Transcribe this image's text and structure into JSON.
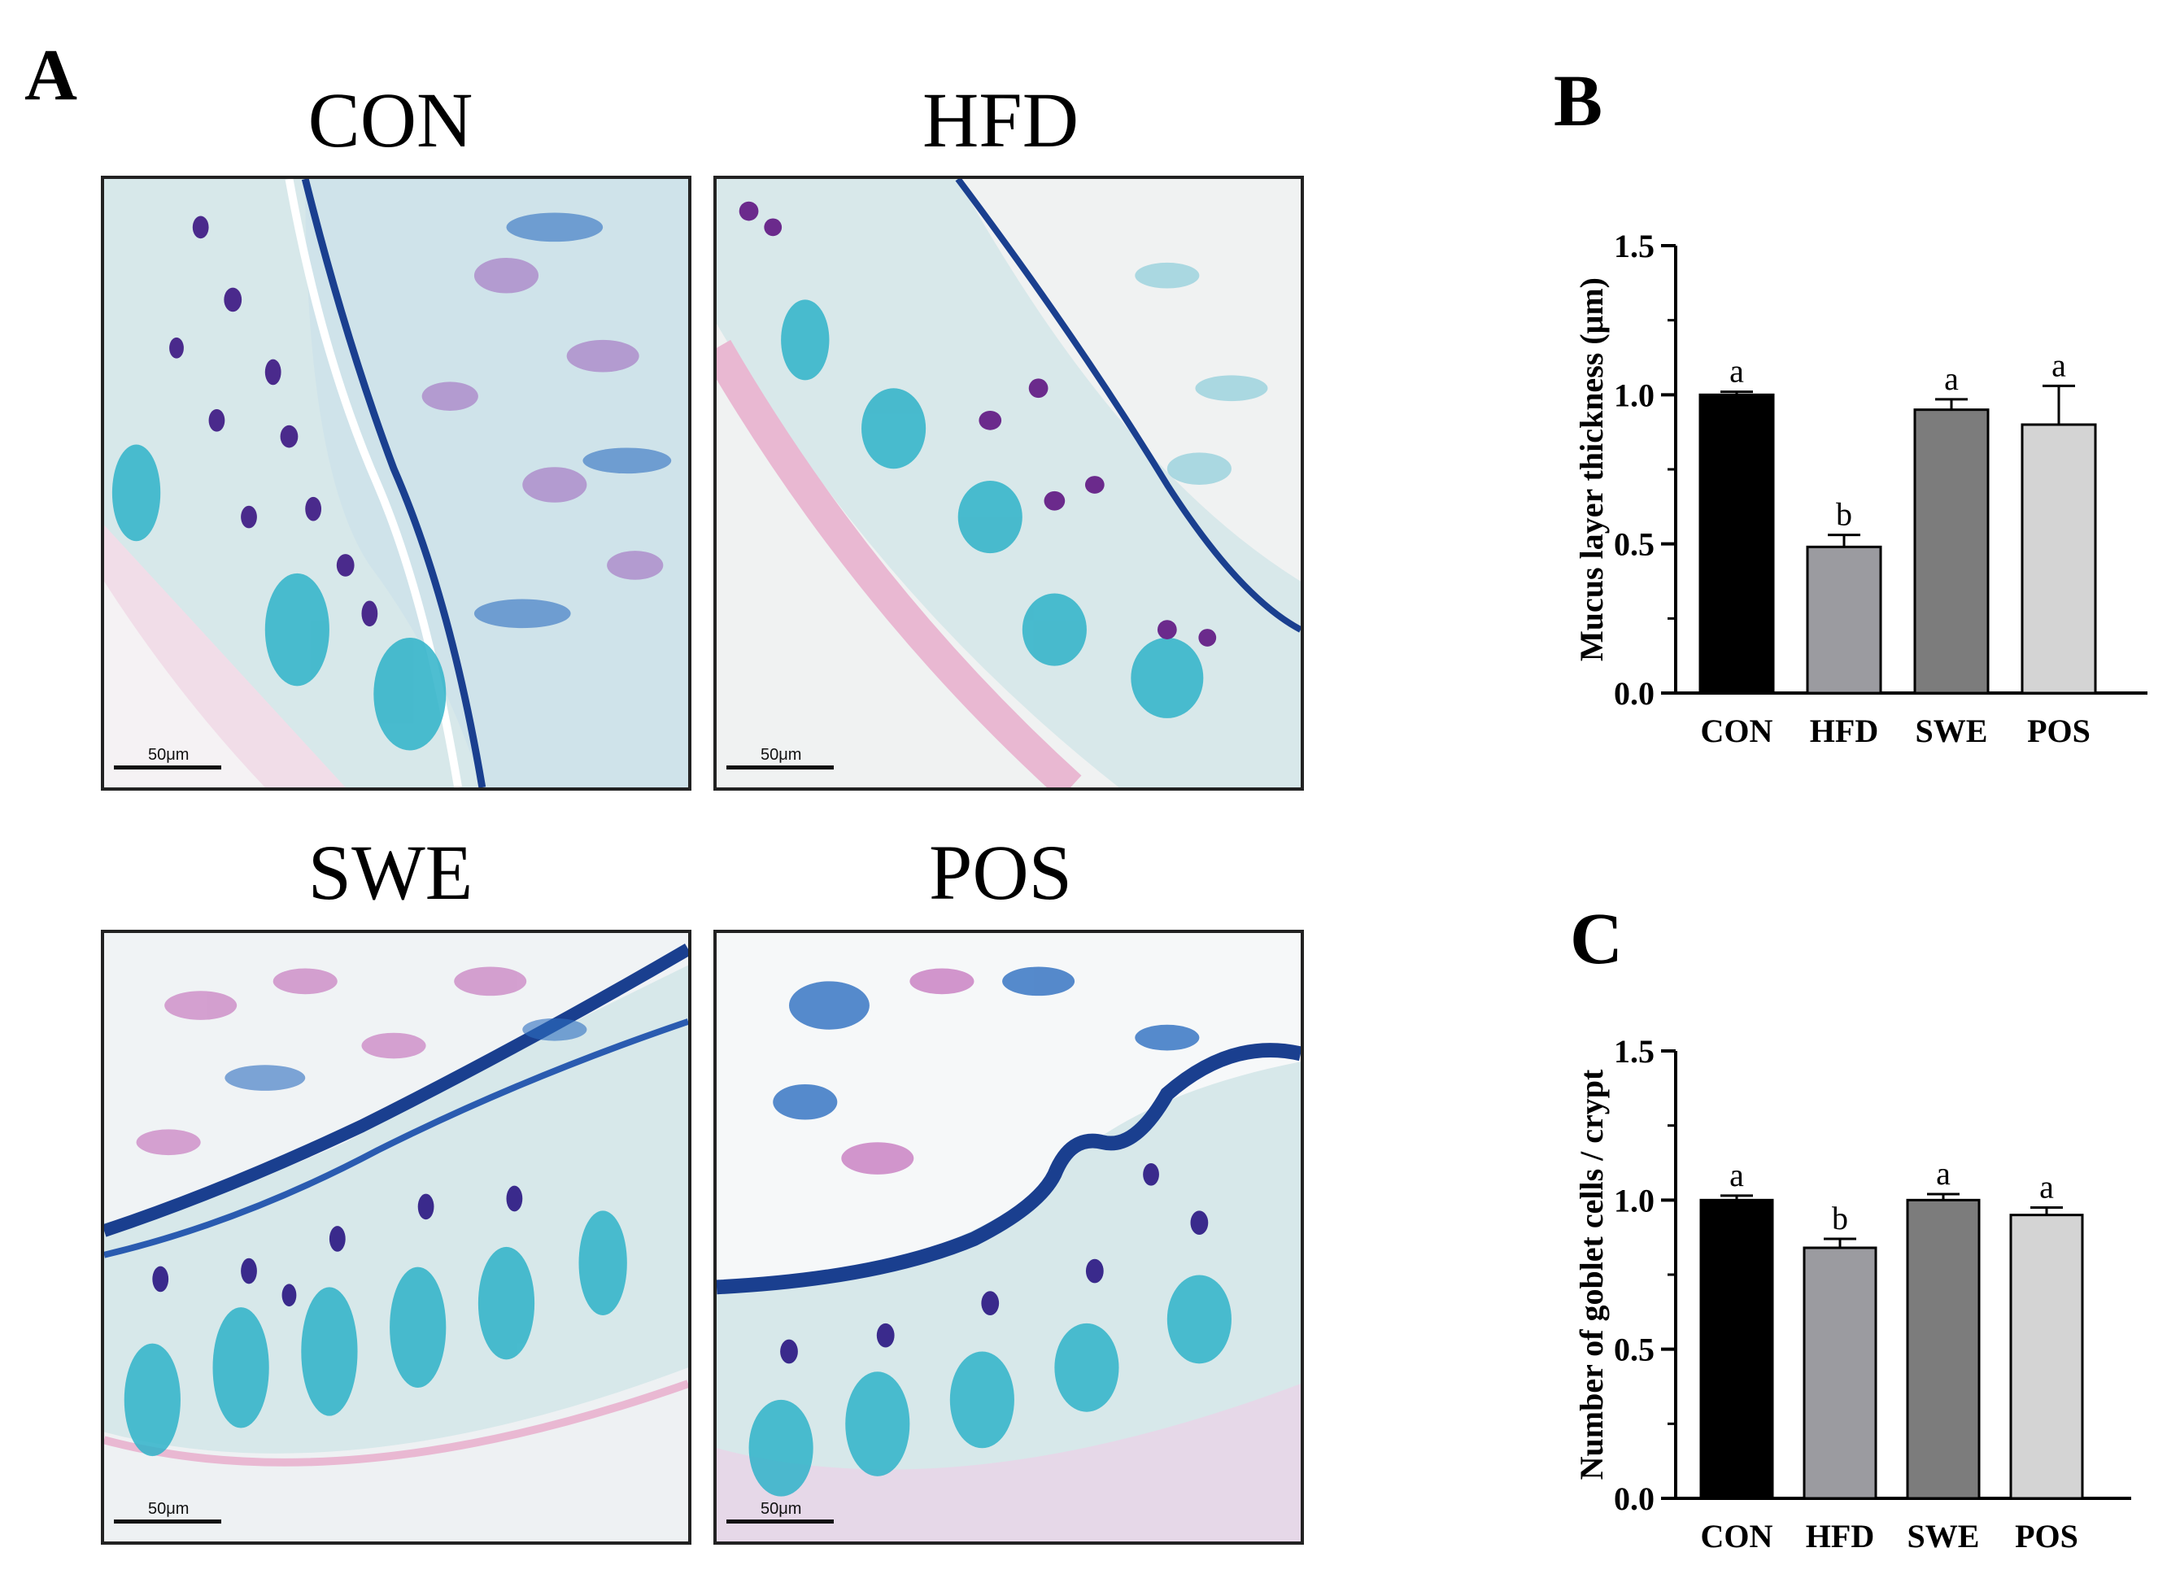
{
  "panels": {
    "A": {
      "letter": "A",
      "images": [
        {
          "title": "CON",
          "scale_label": "50μm"
        },
        {
          "title": "HFD",
          "scale_label": "50μm"
        },
        {
          "title": "SWE",
          "scale_label": "50μm"
        },
        {
          "title": "POS",
          "scale_label": "50μm"
        }
      ]
    },
    "B": {
      "letter": "B"
    },
    "C": {
      "letter": "C"
    }
  },
  "chart_data": [
    {
      "type": "bar",
      "panel": "B",
      "categories": [
        "CON",
        "HFD",
        "SWE",
        "POS"
      ],
      "values": [
        1.0,
        0.49,
        0.95,
        0.9
      ],
      "errors": [
        0.01,
        0.04,
        0.035,
        0.13
      ],
      "letters": [
        "a",
        "b",
        "a",
        "a"
      ],
      "colors": [
        "#000000",
        "#9b9ba0",
        "#7c7c7c",
        "#d4d4d4"
      ],
      "ylabel": "Mucus layer thickness (μm)",
      "ylim": [
        0,
        1.5
      ],
      "yticks": [
        "0.0",
        "0.5",
        "1.0",
        "1.5"
      ],
      "grid": false
    },
    {
      "type": "bar",
      "panel": "C",
      "categories": [
        "CON",
        "HFD",
        "SWE",
        "POS"
      ],
      "values": [
        1.0,
        0.84,
        1.0,
        0.95
      ],
      "errors": [
        0.015,
        0.03,
        0.02,
        0.025
      ],
      "letters": [
        "a",
        "b",
        "a",
        "a"
      ],
      "colors": [
        "#000000",
        "#9b9ba0",
        "#7c7c7c",
        "#d4d4d4"
      ],
      "ylabel": "Number of goblet cells / crypt",
      "ylim": [
        0,
        1.5
      ],
      "yticks": [
        "0.0",
        "0.5",
        "1.0",
        "1.5"
      ],
      "grid": false
    }
  ]
}
